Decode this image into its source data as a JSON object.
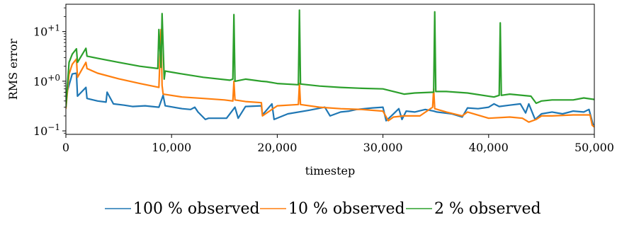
{
  "chart_data": {
    "type": "line",
    "title": "",
    "xlabel": "timestep",
    "ylabel": "RMS error",
    "xlim": [
      0,
      50000
    ],
    "ylim_log10": [
      -1.07,
      1.55
    ],
    "y_scale": "log",
    "grid": false,
    "legend_position": "bottom",
    "x_ticks": [
      0,
      10000,
      20000,
      30000,
      40000,
      50000
    ],
    "x_tick_labels": [
      "0",
      "10,000",
      "20,000",
      "30,000",
      "40,000",
      "50,000"
    ],
    "y_ticks": [
      {
        "value": 0.1,
        "base": "10",
        "exp": "−1"
      },
      {
        "value": 1,
        "base": "10",
        "exp": "+0"
      },
      {
        "value": 10,
        "base": "10",
        "exp": "+1"
      }
    ],
    "series": [
      {
        "name": "100 % observed",
        "color": "#1f77b4",
        "x": [
          0,
          600,
          1000,
          1100,
          1900,
          2000,
          3000,
          3800,
          3900,
          4500,
          5500,
          6300,
          7500,
          8800,
          9200,
          9400,
          11000,
          11800,
          12200,
          12500,
          13200,
          13500,
          14500,
          15200,
          16000,
          16300,
          17000,
          18500,
          18600,
          19500,
          19700,
          21000,
          23000,
          24500,
          25000,
          26000,
          26800,
          27500,
          29000,
          30000,
          30300,
          30800,
          31500,
          31800,
          32200,
          33000,
          34000,
          34800,
          35100,
          36500,
          37500,
          38000,
          39000,
          40000,
          40500,
          41000,
          42000,
          43000,
          43500,
          43800,
          44400,
          45000,
          46000,
          47000,
          48000,
          49000,
          49500,
          49900
        ],
        "y": [
          0.5,
          1.4,
          1.45,
          0.5,
          0.75,
          0.45,
          0.4,
          0.38,
          0.6,
          0.35,
          0.33,
          0.31,
          0.32,
          0.3,
          0.52,
          0.32,
          0.28,
          0.27,
          0.3,
          0.24,
          0.17,
          0.18,
          0.18,
          0.18,
          0.3,
          0.18,
          0.31,
          0.32,
          0.21,
          0.35,
          0.17,
          0.22,
          0.26,
          0.3,
          0.2,
          0.24,
          0.25,
          0.27,
          0.29,
          0.3,
          0.16,
          0.2,
          0.28,
          0.17,
          0.25,
          0.24,
          0.27,
          0.25,
          0.24,
          0.22,
          0.19,
          0.29,
          0.28,
          0.3,
          0.35,
          0.31,
          0.33,
          0.35,
          0.23,
          0.35,
          0.17,
          0.22,
          0.24,
          0.22,
          0.25,
          0.24,
          0.27,
          0.13
        ]
      },
      {
        "name": "10 % observed",
        "color": "#ff7f0e",
        "x": [
          0,
          300,
          600,
          1000,
          1100,
          1900,
          2000,
          3000,
          5000,
          7000,
          8800,
          9000,
          9100,
          9200,
          11000,
          13000,
          15000,
          15800,
          15900,
          16000,
          17000,
          18500,
          18600,
          20000,
          22000,
          22100,
          22200,
          24000,
          26000,
          28000,
          30000,
          30500,
          31000,
          32000,
          33500,
          34700,
          34800,
          34900,
          36000,
          37500,
          38000,
          40000,
          42000,
          43200,
          43800,
          44500,
          45000,
          46000,
          48000,
          49600,
          49800,
          50000
        ],
        "y": [
          0.28,
          1.4,
          2.2,
          2.8,
          1.2,
          2.4,
          1.8,
          1.45,
          1.12,
          0.9,
          0.75,
          11,
          0.82,
          0.55,
          0.48,
          0.45,
          0.42,
          0.4,
          1.0,
          0.42,
          0.39,
          0.37,
          0.2,
          0.32,
          0.34,
          0.9,
          0.34,
          0.3,
          0.28,
          0.27,
          0.25,
          0.16,
          0.19,
          0.2,
          0.2,
          0.3,
          0.7,
          0.28,
          0.24,
          0.2,
          0.24,
          0.18,
          0.19,
          0.18,
          0.15,
          0.17,
          0.2,
          0.2,
          0.21,
          0.21,
          0.13,
          0.12
        ]
      },
      {
        "name": "2 % observed",
        "color": "#2ca02c",
        "x": [
          0,
          300,
          600,
          1000,
          1100,
          1900,
          2000,
          3000,
          5000,
          7000,
          8700,
          8800,
          9000,
          9100,
          9300,
          9400,
          11000,
          13000,
          15500,
          15800,
          15900,
          16000,
          17000,
          18500,
          19000,
          20000,
          22000,
          22100,
          22200,
          24000,
          26000,
          28000,
          30000,
          32000,
          33000,
          34800,
          34900,
          35000,
          36000,
          38000,
          40500,
          41000,
          41100,
          41200,
          42000,
          44000,
          44500,
          45000,
          46000,
          48000,
          49000,
          50000
        ],
        "y": [
          0.3,
          2.4,
          3.5,
          4.5,
          2.4,
          4.6,
          3.2,
          2.9,
          2.4,
          2.0,
          1.8,
          11,
          1.9,
          23,
          1.1,
          1.6,
          1.4,
          1.2,
          1.05,
          1.1,
          22,
          1.0,
          1.1,
          1.0,
          0.98,
          0.9,
          0.85,
          27,
          0.88,
          0.8,
          0.75,
          0.72,
          0.7,
          0.55,
          0.58,
          0.6,
          25,
          0.62,
          0.62,
          0.58,
          0.48,
          0.52,
          15,
          0.52,
          0.55,
          0.5,
          0.36,
          0.4,
          0.42,
          0.42,
          0.46,
          0.43
        ]
      }
    ]
  }
}
